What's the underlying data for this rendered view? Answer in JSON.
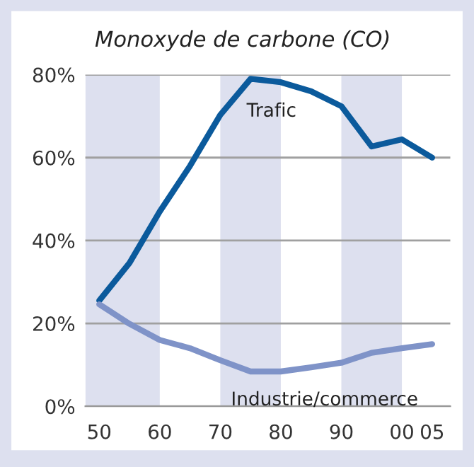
{
  "chart_data": {
    "type": "line",
    "title": "Monoxyde de carbone (CO)",
    "x": [
      1950,
      1955,
      1960,
      1965,
      1970,
      1975,
      1980,
      1985,
      1990,
      1995,
      2000,
      2005
    ],
    "series": [
      {
        "name": "Trafic",
        "color": "#0b5a9c",
        "values": [
          25.5,
          34.6,
          47,
          58,
          70.3,
          79,
          78.2,
          76,
          72.4,
          62.7,
          64.4,
          60
        ]
      },
      {
        "name": "Industrie/commerce",
        "color": "#7f93c8",
        "values": [
          24.6,
          19.9,
          16,
          14,
          11.1,
          8.4,
          8.4,
          9.4,
          10.5,
          12.9,
          14,
          15
        ]
      }
    ],
    "xlim": [
      1947.7,
      2008
    ],
    "ylim": [
      0,
      80
    ],
    "xticks": [
      {
        "value": 1950,
        "label": "50"
      },
      {
        "value": 1960,
        "label": "60"
      },
      {
        "value": 1970,
        "label": "70"
      },
      {
        "value": 1980,
        "label": "80"
      },
      {
        "value": 1990,
        "label": "90"
      },
      {
        "value": 2000,
        "label": "00"
      },
      {
        "value": 2005,
        "label": "05"
      }
    ],
    "yticks": [
      {
        "value": 0,
        "label": "0%"
      },
      {
        "value": 20,
        "label": "20%"
      },
      {
        "value": 40,
        "label": "40%"
      },
      {
        "value": 60,
        "label": "60%"
      },
      {
        "value": 80,
        "label": "80%"
      }
    ],
    "bands": [
      {
        "axis": "x",
        "from": 1947.7,
        "to": 1960,
        "color": "#dde0ef"
      },
      {
        "axis": "x",
        "from": 1970,
        "to": 1980,
        "color": "#dde0ef"
      },
      {
        "axis": "x",
        "from": 1990,
        "to": 2000,
        "color": "#dde0ef"
      }
    ],
    "grid": "y",
    "legend": false,
    "marker": "none",
    "line_style": "solid"
  }
}
